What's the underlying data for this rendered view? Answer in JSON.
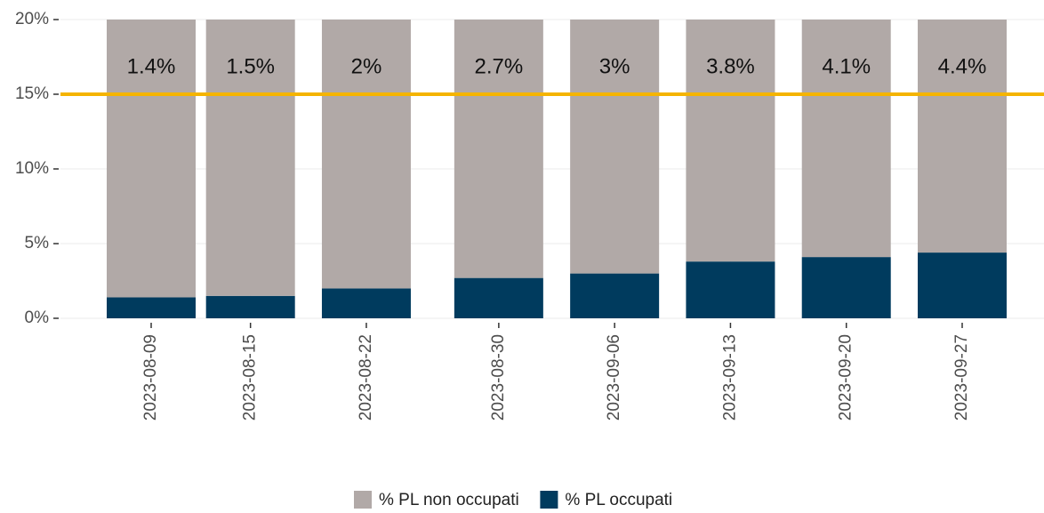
{
  "chart_data": {
    "type": "stacked-bar",
    "x": [
      "2023-08-09",
      "2023-08-15",
      "2023-08-22",
      "2023-08-30",
      "2023-09-06",
      "2023-09-13",
      "2023-09-20",
      "2023-09-27"
    ],
    "series": [
      {
        "name": "% PL non occupati",
        "color": "#b1a9a7",
        "values": [
          18.6,
          18.5,
          18,
          17.3,
          17,
          16.2,
          15.9,
          15.6
        ]
      },
      {
        "name": "% PL occupati",
        "color": "#003b5e",
        "values": [
          1.4,
          1.5,
          2,
          2.7,
          3,
          3.8,
          4.1,
          4.4
        ],
        "value_labels": [
          "1.4%",
          "1.5%",
          "2%",
          "2.7%",
          "3%",
          "3.8%",
          "4.1%",
          "4.4%"
        ]
      }
    ],
    "ylim": [
      0,
      20
    ],
    "yticks": [
      {
        "value": 0,
        "label": "0%"
      },
      {
        "value": 5,
        "label": "5%"
      },
      {
        "value": 10,
        "label": "10%"
      },
      {
        "value": 15,
        "label": "15%"
      },
      {
        "value": 20,
        "label": "20%"
      }
    ],
    "hline": {
      "value": 15,
      "color": "#f5b400"
    },
    "grid": true
  }
}
